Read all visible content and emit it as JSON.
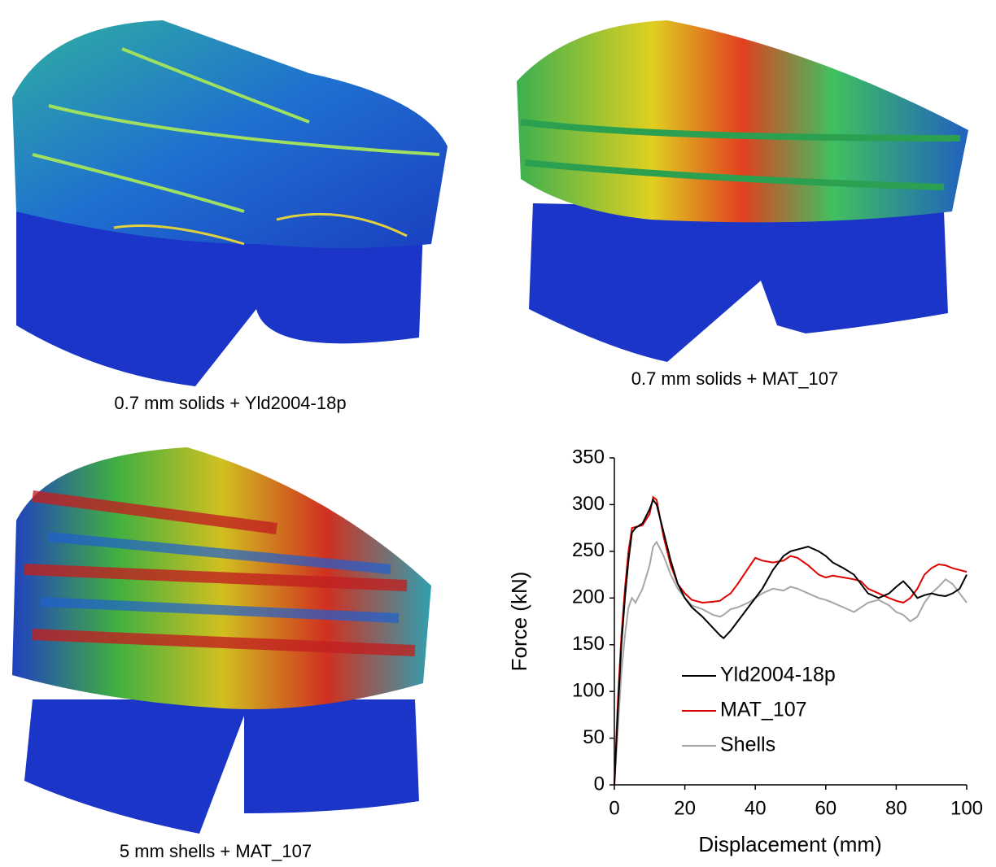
{
  "panels": [
    {
      "caption": "0.7 mm solids + Yld2004-18p"
    },
    {
      "caption": "0.7 mm solids + MAT_107"
    },
    {
      "caption": "5 mm shells + MAT_107"
    }
  ],
  "chart_data": {
    "type": "line",
    "x_label": "Displacement (mm)",
    "y_label": "Force (kN)",
    "x": [
      0,
      1,
      2,
      3,
      4,
      5,
      6,
      8,
      10,
      11,
      12,
      14,
      16,
      18,
      20,
      22,
      25,
      28,
      30,
      31,
      33,
      35,
      38,
      40,
      42,
      45,
      48,
      50,
      52,
      55,
      58,
      60,
      62,
      65,
      68,
      70,
      72,
      75,
      78,
      80,
      82,
      84,
      86,
      88,
      90,
      92,
      94,
      96,
      98,
      100
    ],
    "series": [
      {
        "name": "Yld2004-18p",
        "color": "#000000",
        "values": [
          0,
          80,
          150,
          200,
          240,
          270,
          275,
          280,
          295,
          305,
          300,
          270,
          240,
          215,
          200,
          190,
          180,
          168,
          160,
          157,
          165,
          175,
          190,
          200,
          210,
          230,
          245,
          250,
          252,
          255,
          250,
          245,
          238,
          232,
          225,
          215,
          205,
          200,
          205,
          212,
          218,
          210,
          200,
          203,
          205,
          203,
          202,
          205,
          210,
          225
        ]
      },
      {
        "name": "MAT_107",
        "color": "#e00000",
        "values": [
          0,
          90,
          160,
          210,
          250,
          275,
          276,
          278,
          290,
          308,
          305,
          265,
          235,
          215,
          205,
          198,
          195,
          196,
          197,
          200,
          205,
          215,
          232,
          243,
          240,
          238,
          240,
          245,
          243,
          235,
          225,
          222,
          224,
          222,
          220,
          218,
          210,
          205,
          200,
          197,
          195,
          200,
          210,
          225,
          232,
          236,
          235,
          232,
          230,
          228
        ]
      },
      {
        "name": "Shells",
        "color": "#a6a6a6",
        "values": [
          0,
          60,
          120,
          160,
          190,
          200,
          195,
          210,
          235,
          255,
          260,
          245,
          225,
          210,
          200,
          192,
          188,
          182,
          180,
          182,
          188,
          190,
          195,
          200,
          205,
          210,
          208,
          212,
          210,
          205,
          200,
          198,
          195,
          190,
          185,
          190,
          195,
          198,
          192,
          185,
          182,
          175,
          180,
          195,
          205,
          212,
          220,
          215,
          205,
          195
        ]
      }
    ],
    "xlim": [
      0,
      100
    ],
    "xticks": [
      0,
      20,
      40,
      60,
      80,
      100
    ],
    "ylim": [
      0,
      350
    ],
    "yticks": [
      0,
      50,
      100,
      150,
      200,
      250,
      300,
      350
    ]
  }
}
